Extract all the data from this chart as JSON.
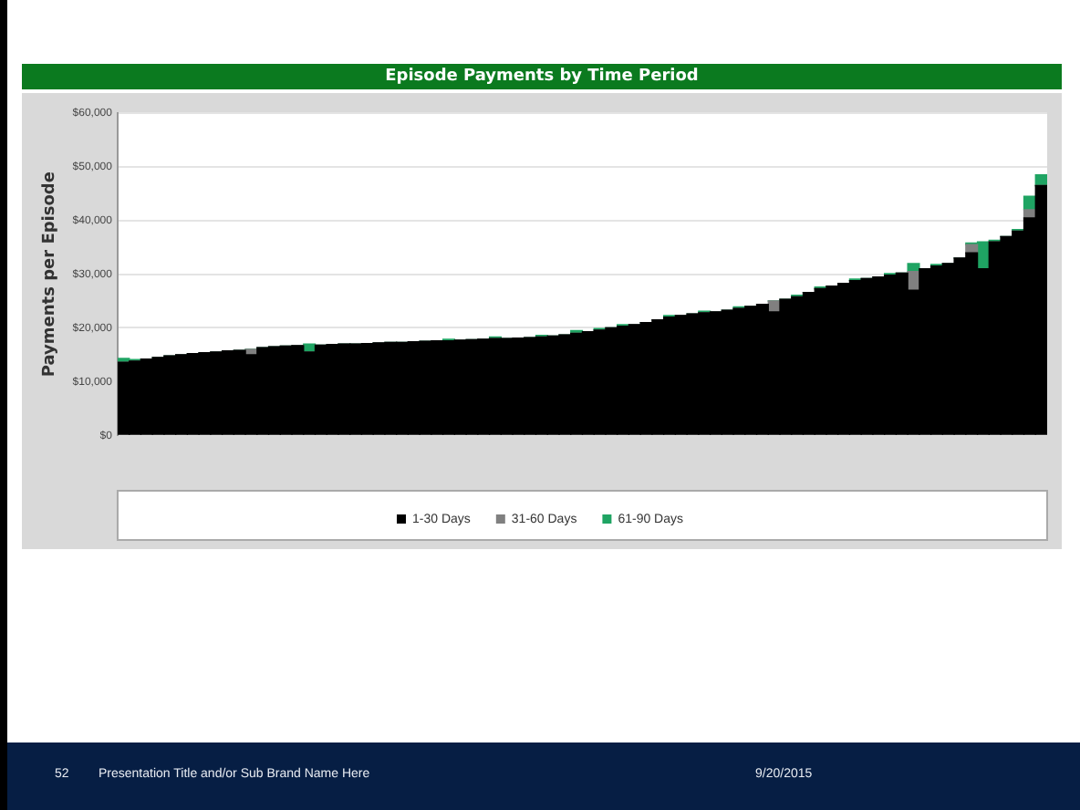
{
  "chart_data": {
    "type": "bar",
    "stacked": true,
    "title": "Episode Payments by Time Period",
    "ylabel": "Payments per Episode",
    "categories": [
      null,
      null,
      null,
      null,
      null,
      null,
      null,
      null,
      null,
      null,
      null,
      null,
      null,
      null,
      null,
      null,
      null,
      null,
      null,
      null,
      null,
      null,
      null,
      null,
      null,
      null,
      null,
      null,
      null,
      null,
      null,
      null,
      null,
      null,
      null,
      null,
      null,
      null,
      null,
      null,
      null,
      null,
      null,
      null,
      null,
      null,
      null,
      null,
      null,
      null,
      null,
      null,
      null,
      null,
      null,
      null,
      null,
      null,
      null,
      null,
      null,
      null,
      null,
      null,
      null,
      null,
      null,
      null,
      null,
      null,
      null,
      null,
      null,
      null,
      null,
      null,
      null,
      null,
      null,
      null
    ],
    "series": [
      {
        "name": "1-30 Days",
        "color": "#000000",
        "values": [
          13600,
          13800,
          14200,
          14500,
          14800,
          15000,
          15200,
          15400,
          15500,
          15700,
          15800,
          15000,
          16300,
          16500,
          16600,
          16700,
          15500,
          16800,
          16900,
          17000,
          17000,
          17100,
          17200,
          17300,
          17300,
          17400,
          17500,
          17600,
          17600,
          17700,
          17800,
          17900,
          18000,
          18000,
          18100,
          18200,
          18300,
          18500,
          18700,
          19000,
          19300,
          19600,
          20000,
          20300,
          20600,
          21000,
          21500,
          22000,
          22300,
          22600,
          22800,
          23000,
          23300,
          23600,
          24000,
          24400,
          23000,
          25300,
          25800,
          26600,
          27300,
          27800,
          28300,
          28800,
          29200,
          29500,
          29800,
          30200,
          27000,
          31000,
          31500,
          32000,
          33000,
          34000,
          31000,
          36000,
          37000,
          38000,
          40500,
          46500
        ]
      },
      {
        "name": "31-60 Days",
        "color": "#808080",
        "values": [
          0,
          0,
          0,
          0,
          0,
          0,
          0,
          0,
          0,
          0,
          0,
          1000,
          0,
          0,
          0,
          0,
          0,
          0,
          0,
          0,
          0,
          0,
          0,
          0,
          0,
          0,
          0,
          0,
          0,
          0,
          0,
          0,
          0,
          0,
          0,
          0,
          0,
          0,
          0,
          0,
          0,
          0,
          0,
          0,
          0,
          0,
          0,
          0,
          0,
          0,
          0,
          0,
          0,
          0,
          0,
          0,
          2000,
          0,
          0,
          0,
          0,
          0,
          0,
          0,
          0,
          0,
          0,
          0,
          3500,
          0,
          0,
          0,
          0,
          1500,
          0,
          0,
          0,
          0,
          1500,
          0
        ]
      },
      {
        "name": "61-90 Days",
        "color": "#1fa463",
        "values": [
          700,
          300,
          0,
          0,
          0,
          0,
          0,
          0,
          0,
          0,
          0,
          0,
          0,
          0,
          0,
          0,
          1500,
          0,
          0,
          0,
          0,
          0,
          0,
          0,
          0,
          0,
          0,
          0,
          300,
          0,
          0,
          0,
          300,
          0,
          0,
          0,
          300,
          0,
          0,
          500,
          0,
          300,
          0,
          300,
          0,
          0,
          0,
          300,
          0,
          0,
          300,
          0,
          0,
          300,
          0,
          0,
          0,
          0,
          300,
          0,
          300,
          0,
          0,
          300,
          0,
          0,
          300,
          0,
          1500,
          0,
          300,
          0,
          0,
          300,
          5000,
          300,
          0,
          300,
          2500,
          2000
        ]
      }
    ],
    "ylim": [
      0,
      60000
    ],
    "yticks": [
      {
        "value": 0,
        "label": "$0"
      },
      {
        "value": 10000,
        "label": "$10,000"
      },
      {
        "value": 20000,
        "label": "$20,000"
      },
      {
        "value": 30000,
        "label": "$30,000"
      },
      {
        "value": 40000,
        "label": "$40,000"
      },
      {
        "value": 50000,
        "label": "$50,000"
      },
      {
        "value": 60000,
        "label": "$60,000"
      }
    ],
    "grid": "y",
    "legend": "bottom",
    "annotations": [
      "52",
      "Presentation Title and/or Sub Brand Name Here",
      "9/20/2015"
    ]
  }
}
